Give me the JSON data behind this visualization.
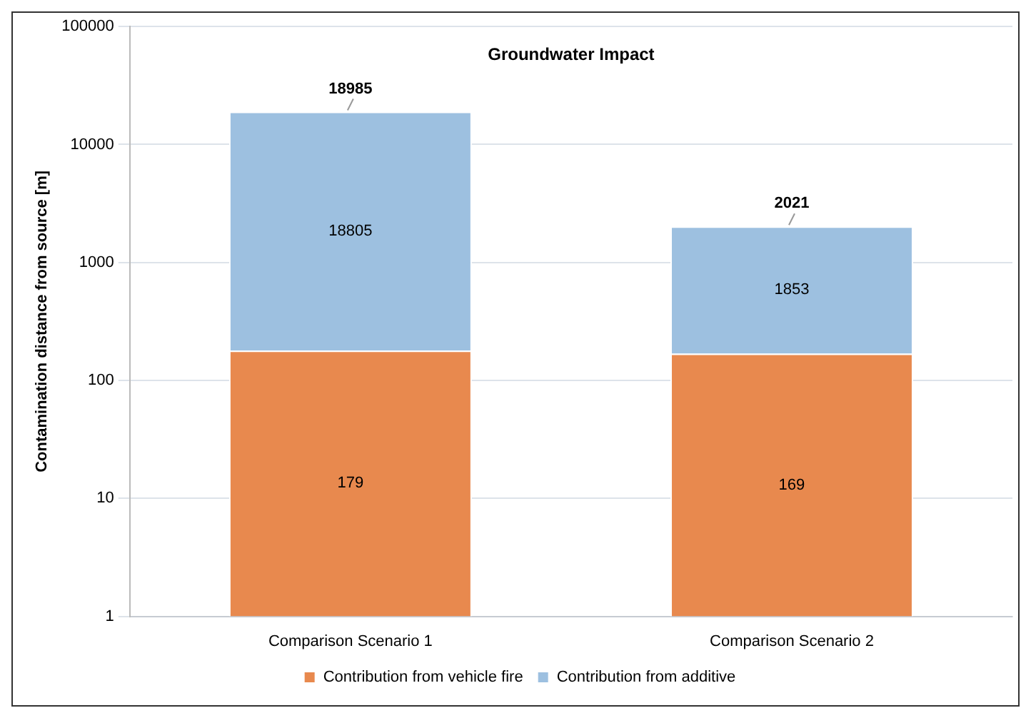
{
  "chart_data": {
    "type": "bar",
    "title": "Groundwater Impact",
    "ylabel": "Contamination distance from source [m]",
    "categories": [
      "Comparison Scenario 1",
      "Comparison Scenario 2"
    ],
    "series": [
      {
        "name": "Contribution from vehicle fire",
        "color": "#e8894e",
        "values": [
          179,
          169
        ]
      },
      {
        "name": "Contribution from additive",
        "color": "#9dc0e0",
        "values": [
          18805,
          1853
        ]
      }
    ],
    "stacked": true,
    "log": "y",
    "ylim": [
      1,
      100000
    ],
    "yticks": [
      1,
      10,
      100,
      1000,
      10000,
      100000
    ],
    "data_labels": true,
    "totals": [
      "18985",
      "2021"
    ],
    "grid": "y",
    "legend": "bottom"
  }
}
